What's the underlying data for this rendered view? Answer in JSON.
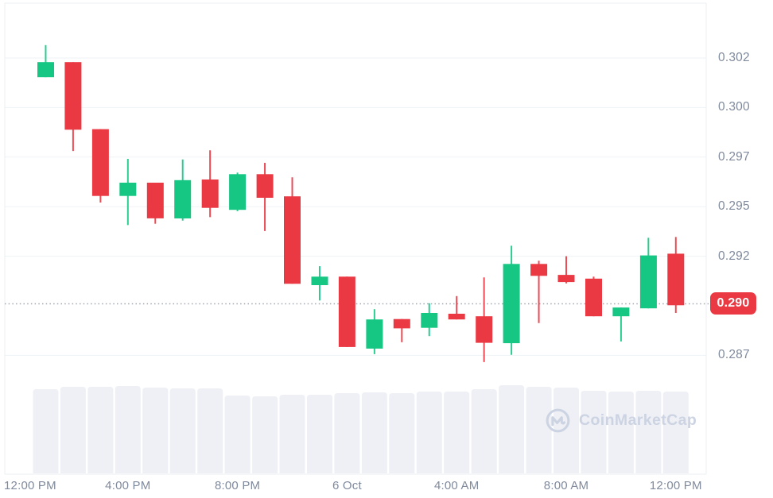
{
  "watermark": {
    "text": "CoinMarketCap"
  },
  "colors": {
    "up": "#16c784",
    "down": "#ea3943",
    "grid": "#eff2f5",
    "border": "#eceff2",
    "axis_text": "#808a9d",
    "volume_bar": "#eef0f5",
    "dotted_line": "#a2a7b1",
    "watermark": "#ccd3e2",
    "badge_bg": "#ea3943",
    "badge_text": "#ffffff",
    "background": "#ffffff"
  },
  "chart_data": {
    "type": "candlestick",
    "title": "",
    "legend": [],
    "grid": "horizontal-only",
    "y_axis": {
      "side": "right",
      "range": [
        0.2855,
        0.3045
      ],
      "ticks": [
        {
          "label": "0.302",
          "value": 0.3025
        },
        {
          "label": "0.300",
          "value": 0.3
        },
        {
          "label": "0.297",
          "value": 0.2975
        },
        {
          "label": "0.295",
          "value": 0.295
        },
        {
          "label": "0.292",
          "value": 0.2925
        },
        {
          "label": "0.287",
          "value": 0.2875
        }
      ]
    },
    "x_axis": {
      "ticks": [
        {
          "label": "12:00 PM",
          "slot": 0
        },
        {
          "label": "4:00 PM",
          "slot": 4
        },
        {
          "label": "8:00 PM",
          "slot": 8
        },
        {
          "label": "6 Oct",
          "slot": 12
        },
        {
          "label": "4:00 AM",
          "slot": 16
        },
        {
          "label": "8:00 AM",
          "slot": 20
        },
        {
          "label": "12:00 PM",
          "slot": 24
        }
      ]
    },
    "current_price": {
      "label": "0.290",
      "value": 0.2901
    },
    "candles": [
      {
        "t": "1:00 PM",
        "o": 0.30153,
        "h": 0.30315,
        "l": 0.30153,
        "c": 0.30229,
        "dir": "up",
        "v": 0.955
      },
      {
        "t": "2:00 PM",
        "o": 0.30229,
        "h": 0.30229,
        "l": 0.29781,
        "c": 0.29888,
        "dir": "down",
        "v": 0.982
      },
      {
        "t": "3:00 PM",
        "o": 0.29891,
        "h": 0.29891,
        "l": 0.29521,
        "c": 0.29554,
        "dir": "down",
        "v": 0.982
      },
      {
        "t": "4:00 PM",
        "o": 0.29554,
        "h": 0.29741,
        "l": 0.29407,
        "c": 0.29621,
        "dir": "up",
        "v": 0.991
      },
      {
        "t": "5:00 PM",
        "o": 0.29621,
        "h": 0.29621,
        "l": 0.29414,
        "c": 0.29441,
        "dir": "down",
        "v": 0.973
      },
      {
        "t": "6:00 PM",
        "o": 0.29441,
        "h": 0.29738,
        "l": 0.2943,
        "c": 0.29634,
        "dir": "up",
        "v": 0.964
      },
      {
        "t": "7:00 PM",
        "o": 0.29637,
        "h": 0.29784,
        "l": 0.29447,
        "c": 0.29494,
        "dir": "down",
        "v": 0.964
      },
      {
        "t": "8:00 PM",
        "o": 0.29484,
        "h": 0.29672,
        "l": 0.29477,
        "c": 0.29664,
        "dir": "up",
        "v": 0.883
      },
      {
        "t": "9:00 PM",
        "o": 0.29664,
        "h": 0.29721,
        "l": 0.29377,
        "c": 0.29545,
        "dir": "down",
        "v": 0.874
      },
      {
        "t": "10:00 PM",
        "o": 0.29552,
        "h": 0.29648,
        "l": 0.29111,
        "c": 0.29111,
        "dir": "down",
        "v": 0.892
      },
      {
        "t": "11:00 PM",
        "o": 0.29104,
        "h": 0.292,
        "l": 0.29027,
        "c": 0.29147,
        "dir": "up",
        "v": 0.892
      },
      {
        "t": "12:00 AM",
        "o": 0.29147,
        "h": 0.29147,
        "l": 0.28792,
        "c": 0.28792,
        "dir": "down",
        "v": 0.91
      },
      {
        "t": "1:00 AM",
        "o": 0.28784,
        "h": 0.28983,
        "l": 0.28756,
        "c": 0.28931,
        "dir": "up",
        "v": 0.919
      },
      {
        "t": "2:00 AM",
        "o": 0.28933,
        "h": 0.28933,
        "l": 0.28816,
        "c": 0.28886,
        "dir": "down",
        "v": 0.91
      },
      {
        "t": "3:00 AM",
        "o": 0.28889,
        "h": 0.29013,
        "l": 0.28847,
        "c": 0.28964,
        "dir": "up",
        "v": 0.928
      },
      {
        "t": "4:00 AM",
        "o": 0.2896,
        "h": 0.29049,
        "l": 0.28931,
        "c": 0.28931,
        "dir": "down",
        "v": 0.928
      },
      {
        "t": "5:00 AM",
        "o": 0.28947,
        "h": 0.29143,
        "l": 0.28716,
        "c": 0.28813,
        "dir": "down",
        "v": 0.955
      },
      {
        "t": "6:00 AM",
        "o": 0.28811,
        "h": 0.29303,
        "l": 0.28753,
        "c": 0.29211,
        "dir": "up",
        "v": 1.0
      },
      {
        "t": "7:00 AM",
        "o": 0.29211,
        "h": 0.29227,
        "l": 0.28913,
        "c": 0.29151,
        "dir": "down",
        "v": 0.982
      },
      {
        "t": "8:00 AM",
        "o": 0.29156,
        "h": 0.2925,
        "l": 0.29113,
        "c": 0.2912,
        "dir": "down",
        "v": 0.973
      },
      {
        "t": "9:00 AM",
        "o": 0.29137,
        "h": 0.29147,
        "l": 0.28947,
        "c": 0.28947,
        "dir": "down",
        "v": 0.937
      },
      {
        "t": "10:00 AM",
        "o": 0.28947,
        "h": 0.28991,
        "l": 0.2882,
        "c": 0.28991,
        "dir": "up",
        "v": 0.928
      },
      {
        "t": "11:00 AM",
        "o": 0.28987,
        "h": 0.29343,
        "l": 0.28987,
        "c": 0.29254,
        "dir": "up",
        "v": 0.937
      },
      {
        "t": "12:00 PM",
        "o": 0.29263,
        "h": 0.29347,
        "l": 0.28964,
        "c": 0.29003,
        "dir": "down",
        "v": 0.928
      }
    ],
    "volume_note": "volumes are relative heights (max = 1.0), no numeric volume axis shown"
  }
}
